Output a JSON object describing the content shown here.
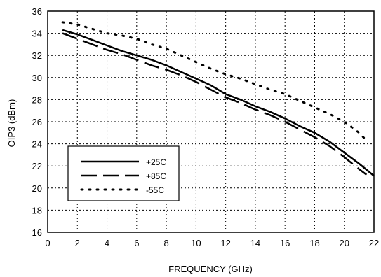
{
  "chart_data": {
    "type": "line",
    "title": "",
    "xlabel": "FREQUENCY (GHz)",
    "ylabel": "OIP3 (dBm)",
    "xlim": [
      0,
      22
    ],
    "ylim": [
      16,
      36
    ],
    "xticks": [
      0,
      2,
      4,
      6,
      8,
      10,
      12,
      14,
      16,
      18,
      20,
      22
    ],
    "yticks": [
      16,
      18,
      20,
      22,
      24,
      26,
      28,
      30,
      32,
      34,
      36
    ],
    "grid": true,
    "legend_position": "lower-left",
    "series": [
      {
        "name": "+25C",
        "style": "solid",
        "color": "#000000",
        "x": [
          1,
          2,
          3,
          4,
          5,
          6,
          7,
          8,
          9,
          10,
          11,
          12,
          13,
          14,
          15,
          16,
          17,
          18,
          19,
          20,
          21,
          22
        ],
        "y": [
          34.3,
          33.9,
          33.4,
          32.9,
          32.4,
          32.0,
          31.6,
          31.1,
          30.5,
          29.9,
          29.3,
          28.5,
          28.0,
          27.4,
          26.9,
          26.3,
          25.6,
          25.0,
          24.2,
          23.2,
          22.2,
          21.1
        ]
      },
      {
        "name": "+85C",
        "style": "dashed",
        "color": "#000000",
        "x": [
          1,
          2,
          3,
          4,
          5,
          6,
          7,
          8,
          9,
          10,
          11,
          12,
          13,
          14,
          15,
          16,
          17,
          18,
          19,
          20,
          21,
          21.5
        ],
        "y": [
          34.0,
          33.5,
          33.0,
          32.5,
          32.1,
          31.6,
          31.1,
          30.7,
          30.2,
          29.6,
          28.9,
          28.2,
          27.7,
          27.1,
          26.6,
          26.0,
          25.3,
          24.6,
          23.8,
          22.8,
          21.7,
          21.2
        ]
      },
      {
        "name": "-55C",
        "style": "dotted",
        "color": "#000000",
        "x": [
          1,
          2,
          3,
          4,
          5,
          6,
          7,
          8,
          9,
          10,
          11,
          12,
          13,
          14,
          15,
          16,
          17,
          18,
          19,
          20,
          21,
          21.5
        ],
        "y": [
          35.0,
          34.8,
          34.4,
          34.0,
          33.8,
          33.5,
          33.0,
          32.6,
          32.0,
          31.4,
          30.8,
          30.3,
          29.9,
          29.4,
          28.9,
          28.5,
          27.9,
          27.3,
          26.7,
          26.0,
          25.0,
          24.3
        ]
      }
    ]
  }
}
